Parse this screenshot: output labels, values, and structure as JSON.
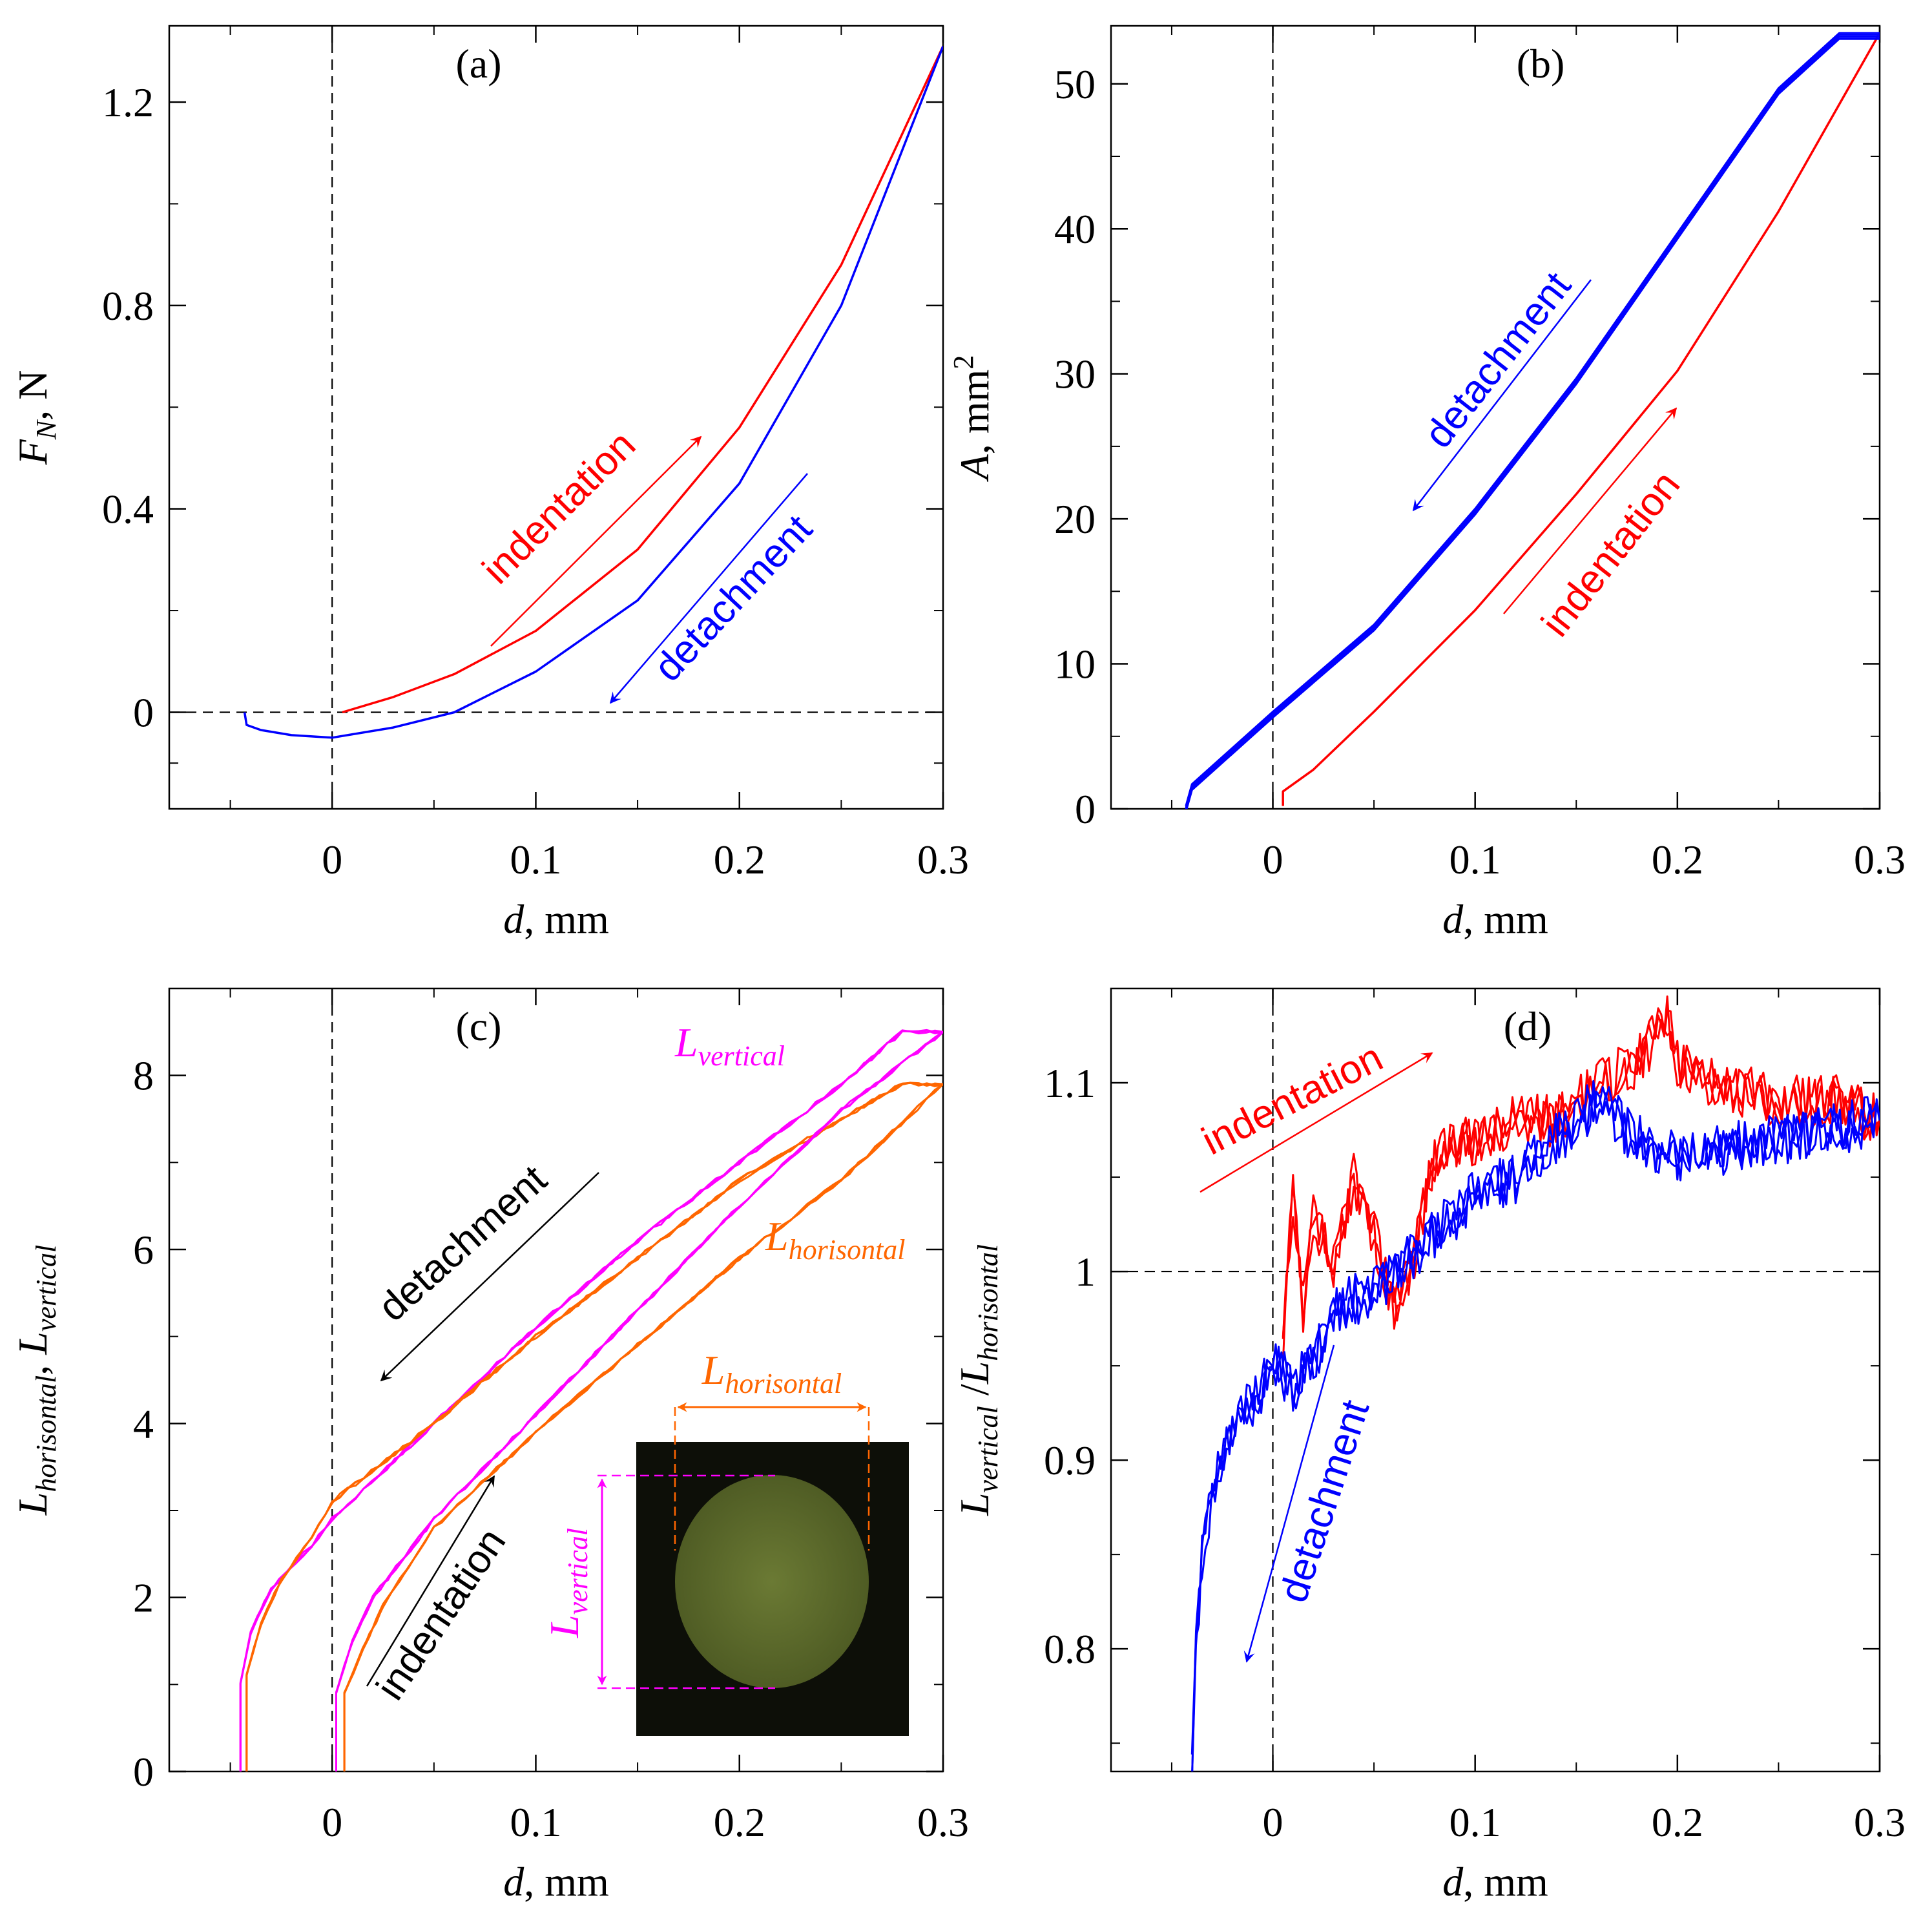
{
  "chart_data": [
    {
      "id": "a",
      "type": "line",
      "panel_label": "(a)",
      "xlabel_var": "d",
      "xlabel_unit": ", mm",
      "ylabel_var": "F",
      "ylabel_sub": "N",
      "ylabel_unit": ", N",
      "xlim": [
        -0.08,
        0.3
      ],
      "ylim": [
        -0.19,
        1.35
      ],
      "xticks": [
        0,
        0.1,
        0.2,
        0.3
      ],
      "xtick_labels": [
        "0",
        "0.1",
        "0.2",
        "0.3"
      ],
      "xminor": [
        -0.05,
        0.05,
        0.15,
        0.25
      ],
      "yticks": [
        0,
        0.4,
        0.8,
        1.2
      ],
      "ytick_labels": [
        "0",
        "0.4",
        "0.8",
        "1.2"
      ],
      "yminor": [
        -0.1,
        0.2,
        0.6,
        1.0
      ],
      "ref_lines": {
        "x0": true,
        "y": 0
      },
      "series": [
        {
          "name": "indentation",
          "color": "#ff0000",
          "x": [
            0.005,
            0.03,
            0.06,
            0.1,
            0.15,
            0.2,
            0.25,
            0.3
          ],
          "y": [
            0.0,
            0.03,
            0.075,
            0.16,
            0.32,
            0.56,
            0.88,
            1.31
          ]
        },
        {
          "name": "detachment",
          "color": "#0000ff",
          "x": [
            -0.043,
            -0.042,
            -0.035,
            -0.02,
            0.0,
            0.03,
            0.06,
            0.1,
            0.15,
            0.2,
            0.25,
            0.3
          ],
          "y": [
            0.0,
            -0.025,
            -0.035,
            -0.045,
            -0.05,
            -0.03,
            0.0,
            0.08,
            0.22,
            0.45,
            0.8,
            1.31
          ]
        }
      ],
      "annotations": [
        {
          "text": "indentation",
          "color": "#ff0000",
          "dir": "up"
        },
        {
          "text": "detachment",
          "color": "#0000ff",
          "dir": "down"
        }
      ]
    },
    {
      "id": "b",
      "type": "line",
      "panel_label": "(b)",
      "xlabel_var": "d",
      "xlabel_unit": ", mm",
      "ylabel_var": "A",
      "ylabel_unit": ", mm",
      "ylabel_sup": "2",
      "xlim": [
        -0.08,
        0.3
      ],
      "ylim": [
        0,
        54
      ],
      "xticks": [
        0,
        0.1,
        0.2,
        0.3
      ],
      "xtick_labels": [
        "0",
        "0.1",
        "0.2",
        "0.3"
      ],
      "xminor": [
        -0.05,
        0.05,
        0.15,
        0.25
      ],
      "yticks": [
        0,
        10,
        20,
        30,
        40,
        50
      ],
      "ytick_labels": [
        "0",
        "10",
        "20",
        "30",
        "40",
        "50"
      ],
      "yminor": [
        5,
        15,
        25,
        35,
        45
      ],
      "ref_lines": {
        "x0": true
      },
      "series": [
        {
          "name": "indentation",
          "color": "#ff0000",
          "x": [
            0.005,
            0.005,
            0.02,
            0.05,
            0.1,
            0.15,
            0.2,
            0.25,
            0.3
          ],
          "y": [
            0.0,
            1.0,
            2.5,
            6.5,
            13.5,
            21.5,
            30.0,
            41.0,
            53.3
          ]
        },
        {
          "name": "detachment",
          "color": "#0000ff",
          "x": [
            -0.043,
            -0.04,
            -0.02,
            0.0,
            0.05,
            0.1,
            0.15,
            0.2,
            0.25,
            0.28,
            0.3
          ],
          "y": [
            0.0,
            1.5,
            4.0,
            6.5,
            12.5,
            20.5,
            29.5,
            39.5,
            49.5,
            53.3,
            53.3
          ]
        }
      ],
      "annotations": [
        {
          "text": "detachment",
          "color": "#0000ff",
          "dir": "down"
        },
        {
          "text": "indentation",
          "color": "#ff0000",
          "dir": "up"
        }
      ]
    },
    {
      "id": "c",
      "type": "line",
      "panel_label": "(c)",
      "xlabel_var": "d",
      "xlabel_unit": ", mm",
      "ylabel_var1": "L",
      "ylabel_sub1": "horisontal",
      "ylabel_sep": ", ",
      "ylabel_var2": "L",
      "ylabel_sub2": "vertical",
      "xlim": [
        -0.08,
        0.3
      ],
      "ylim": [
        0,
        9
      ],
      "xticks": [
        0,
        0.1,
        0.2,
        0.3
      ],
      "xtick_labels": [
        "0",
        "0.1",
        "0.2",
        "0.3"
      ],
      "xminor": [
        -0.05,
        0.05,
        0.15,
        0.25
      ],
      "yticks": [
        0,
        2,
        4,
        6,
        8
      ],
      "ytick_labels": [
        "0",
        "2",
        "4",
        "6",
        "8"
      ],
      "yminor": [
        1,
        3,
        5,
        7
      ],
      "ref_lines": {
        "x0": true
      },
      "series": [
        {
          "name": "L_vertical detachment",
          "color": "#ff00ff",
          "x": [
            -0.045,
            -0.045,
            -0.04,
            -0.03,
            -0.01,
            0.0,
            0.05,
            0.1,
            0.15,
            0.2,
            0.25,
            0.28,
            0.3
          ],
          "y": [
            0.0,
            1.0,
            1.6,
            2.1,
            2.6,
            2.9,
            4.0,
            5.1,
            6.1,
            7.0,
            7.9,
            8.5,
            8.5
          ]
        },
        {
          "name": "L_horisontal detachment",
          "color": "#ff6600",
          "x": [
            -0.042,
            -0.042,
            -0.035,
            -0.025,
            -0.01,
            0.0,
            0.05,
            0.1,
            0.15,
            0.2,
            0.25,
            0.28,
            0.3
          ],
          "y": [
            0.0,
            1.1,
            1.7,
            2.2,
            2.7,
            3.1,
            4.0,
            5.0,
            5.9,
            6.8,
            7.5,
            7.9,
            7.9
          ]
        },
        {
          "name": "L_vertical indentation",
          "color": "#ff00ff",
          "x": [
            0.002,
            0.002,
            0.01,
            0.02,
            0.05,
            0.1,
            0.15,
            0.2,
            0.25,
            0.3
          ],
          "y": [
            0.0,
            0.9,
            1.5,
            2.0,
            2.9,
            4.1,
            5.3,
            6.5,
            7.6,
            8.5
          ]
        },
        {
          "name": "L_horisontal indentation",
          "color": "#ff6600",
          "x": [
            0.006,
            0.006,
            0.015,
            0.025,
            0.05,
            0.1,
            0.15,
            0.2,
            0.25,
            0.3
          ],
          "y": [
            0.0,
            0.9,
            1.4,
            1.9,
            2.8,
            3.9,
            4.9,
            5.9,
            6.8,
            7.9
          ]
        }
      ],
      "labels": [
        {
          "var": "L",
          "sub": "vertical",
          "color": "#ff00ff"
        },
        {
          "var": "L",
          "sub": "horisontal",
          "color": "#ff6600"
        }
      ],
      "annotations": [
        {
          "text": "detachment",
          "color": "#000000",
          "dir": "down"
        },
        {
          "text": "indentation",
          "color": "#000000",
          "dir": "up"
        }
      ],
      "inset": {
        "photo_bg": "#0d0f08",
        "spot_color": "#5c6a2c",
        "h_label_var": "L",
        "h_label_sub": "horisontal",
        "h_color": "#ff6600",
        "v_label_var": "L",
        "v_label_sub": "vertical",
        "v_color": "#ff00ff"
      }
    },
    {
      "id": "d",
      "type": "line",
      "panel_label": "(d)",
      "xlabel_var": "d",
      "xlabel_unit": ", mm",
      "ylabel_var1": "L",
      "ylabel_sub1": "vertical",
      "ylabel_sep": " /",
      "ylabel_var2": "L",
      "ylabel_sub2": "horisontal",
      "xlim": [
        -0.08,
        0.3
      ],
      "ylim": [
        0.735,
        1.15
      ],
      "xticks": [
        0,
        0.1,
        0.2,
        0.3
      ],
      "xtick_labels": [
        "0",
        "0.1",
        "0.2",
        "0.3"
      ],
      "xminor": [
        -0.05,
        0.05,
        0.15,
        0.25
      ],
      "yticks": [
        0.8,
        0.9,
        1.0,
        1.1
      ],
      "ytick_labels": [
        "0.8",
        "0.9",
        "1",
        "1.1"
      ],
      "yminor": [
        0.75,
        0.85,
        0.95,
        1.05
      ],
      "ref_lines": {
        "x0": true,
        "y": 1.0
      },
      "series": [
        {
          "name": "indentation",
          "color": "#ff0000",
          "x": [
            0.005,
            0.01,
            0.015,
            0.02,
            0.03,
            0.04,
            0.05,
            0.06,
            0.07,
            0.08,
            0.1,
            0.12,
            0.14,
            0.16,
            0.18,
            0.195,
            0.2,
            0.22,
            0.25,
            0.28,
            0.3
          ],
          "y": [
            0.96,
            1.04,
            0.98,
            1.03,
            1.0,
            1.05,
            1.02,
            0.98,
            1.01,
            1.06,
            1.07,
            1.08,
            1.08,
            1.1,
            1.11,
            1.135,
            1.11,
            1.1,
            1.09,
            1.09,
            1.08
          ]
        },
        {
          "name": "detachment",
          "color": "#0000ff",
          "x": [
            -0.04,
            -0.038,
            -0.035,
            -0.03,
            -0.02,
            -0.01,
            0.0,
            0.01,
            0.02,
            0.03,
            0.05,
            0.08,
            0.1,
            0.12,
            0.14,
            0.16,
            0.18,
            0.2,
            0.25,
            0.3
          ],
          "y": [
            0.74,
            0.8,
            0.85,
            0.88,
            0.92,
            0.93,
            0.95,
            0.94,
            0.95,
            0.98,
            0.99,
            1.02,
            1.04,
            1.05,
            1.07,
            1.09,
            1.07,
            1.06,
            1.07,
            1.08
          ]
        }
      ],
      "annotations": [
        {
          "text": "indentation",
          "color": "#ff0000",
          "dir": "up"
        },
        {
          "text": "detachment",
          "color": "#0000ff",
          "dir": "down"
        }
      ]
    }
  ]
}
